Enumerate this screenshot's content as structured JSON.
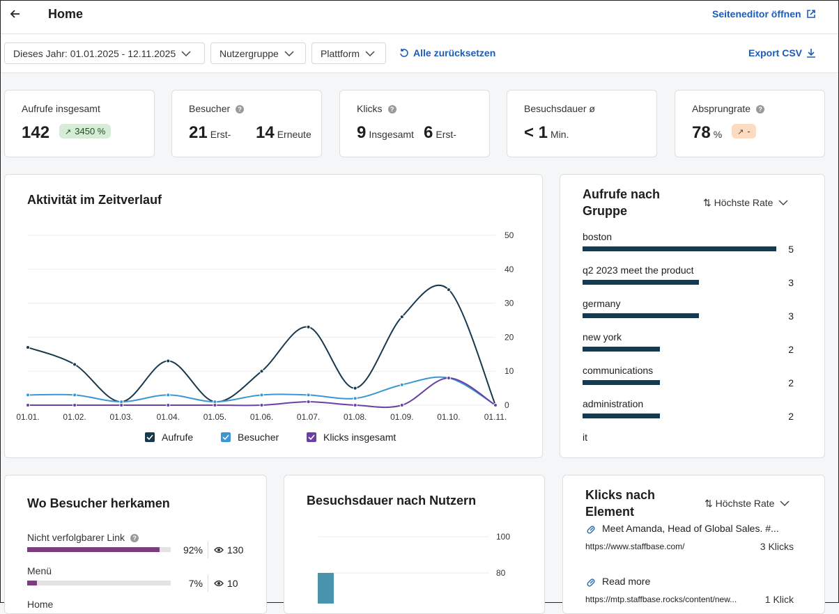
{
  "header": {
    "title": "Home",
    "editor_link": "Seiteneditor öffnen"
  },
  "filters": {
    "date_range": "Dieses Jahr: 01.01.2025 - 12.11.2025",
    "user_group": "Nutzergruppe",
    "platform": "Plattform",
    "reset": "Alle zurücksetzen",
    "export": "Export CSV"
  },
  "kpis": [
    {
      "label": "Aufrufe insgesamt",
      "value": 142,
      "badge": "3450 %"
    },
    {
      "label": "Besucher",
      "value": 21,
      "unit": "Erst-",
      "value2": 14,
      "unit2": "Erneute"
    },
    {
      "label": "Klicks",
      "value": 9,
      "unit": "Insgesamt",
      "value2": 6,
      "unit2": "Erst-"
    },
    {
      "label": "Besuchsdauer ø",
      "value": "< 1",
      "unit": "Min."
    },
    {
      "label": "Absprungrate",
      "value": 78,
      "unit": "%",
      "badge": "-"
    }
  ],
  "chart_data": [
    {
      "type": "line",
      "title": "Aktivität im Zeitverlauf",
      "categories": [
        "01.01.",
        "01.02.",
        "01.03.",
        "01.04.",
        "01.05.",
        "01.06.",
        "01.07.",
        "01.08.",
        "01.09.",
        "01.10.",
        "01.11."
      ],
      "series": [
        {
          "name": "Aufrufe",
          "color": "#17384d",
          "values": [
            17,
            12,
            1,
            13,
            1,
            10,
            23,
            5,
            26,
            34,
            0
          ]
        },
        {
          "name": "Besucher",
          "color": "#3a97d4",
          "values": [
            3,
            3,
            1,
            3,
            1,
            3,
            3,
            2,
            6,
            8,
            0
          ]
        },
        {
          "name": "Klicks insgesamt",
          "color": "#6b3fa3",
          "values": [
            0,
            0,
            0,
            0,
            0,
            0,
            1,
            0,
            0,
            8,
            0
          ]
        }
      ],
      "ylim": [
        0,
        50
      ],
      "yticks": [
        0,
        10,
        20,
        30,
        40,
        50
      ],
      "grid": true,
      "legend": "bottom"
    },
    {
      "type": "bar",
      "title": "Besuchsdauer nach Nutzern",
      "values": [
        80
      ],
      "color": "#4a93ad",
      "ylim": [
        0,
        100
      ],
      "yticks": [
        80,
        100
      ],
      "grid": true
    }
  ],
  "groups": {
    "title": "Aufrufe nach Gruppe",
    "sort": "Höchste Rate",
    "items": [
      {
        "name": "boston",
        "value": 5
      },
      {
        "name": "q2 2023 meet the product",
        "value": 3
      },
      {
        "name": "germany",
        "value": 3
      },
      {
        "name": "new york",
        "value": 2
      },
      {
        "name": "communications",
        "value": 2
      },
      {
        "name": "administration",
        "value": 2
      },
      {
        "name": "it"
      }
    ]
  },
  "sources": {
    "title": "Wo Besucher herkamen",
    "items": [
      {
        "name": "Nicht verfolgbarer Link",
        "percent": 92,
        "percent_label": "92%",
        "views": 130
      },
      {
        "name": "Menü",
        "percent": 7,
        "percent_label": "7%",
        "views": 10
      },
      {
        "name": "Home"
      }
    ]
  },
  "element_clicks": {
    "title": "Klicks nach Element",
    "sort": "Höchste Rate",
    "items": [
      {
        "title": "Meet Amanda, Head of Global Sales. #...",
        "url": "https://www.staffbase.com/",
        "clicks": "3 Klicks"
      },
      {
        "title": "Read more",
        "url": "https://mtp.staffbase.rocks/content/new...",
        "clicks": "1 Klick"
      }
    ]
  }
}
